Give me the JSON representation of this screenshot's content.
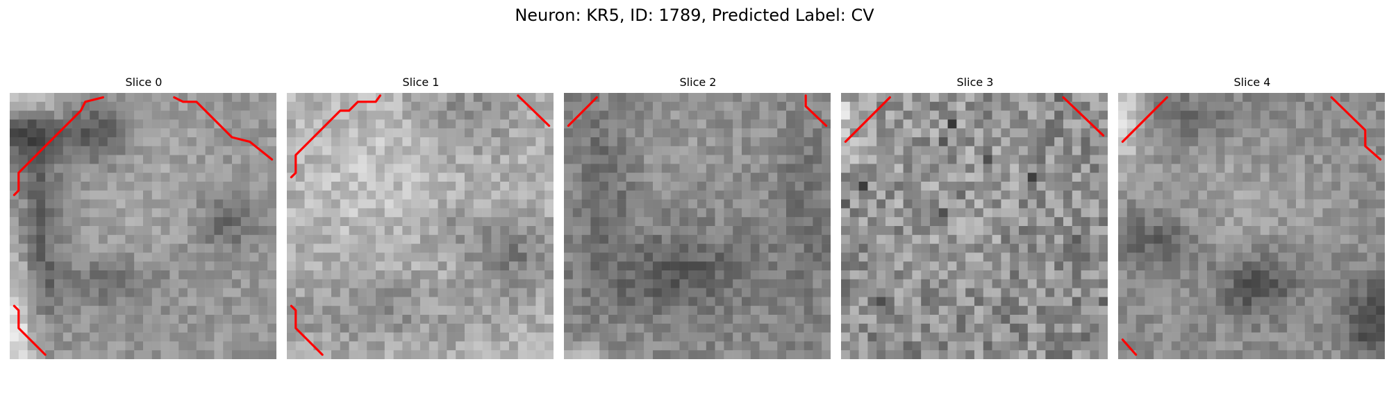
{
  "figure": {
    "title": "Neuron: KR5, ID: 1789, Predicted Label: CV"
  },
  "panels": [
    {
      "title": "Slice 0"
    },
    {
      "title": "Slice 1"
    },
    {
      "title": "Slice 2"
    },
    {
      "title": "Slice 3"
    },
    {
      "title": "Slice 4"
    }
  ],
  "style": {
    "contour_color": "#ff0000",
    "colormap": "grayscale"
  }
}
